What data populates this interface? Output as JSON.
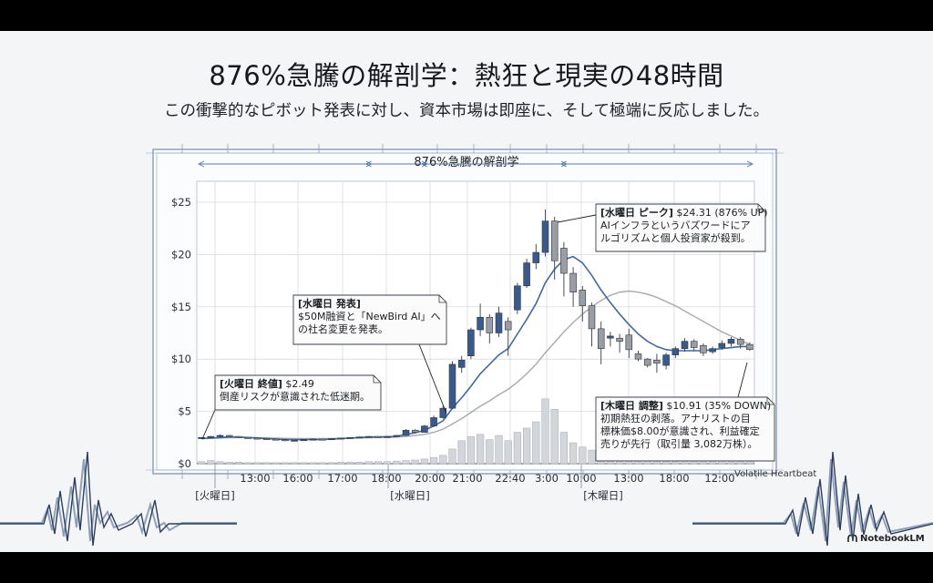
{
  "slide": {
    "title": "876%急騰の解剖学：熱狂と現実の48時間",
    "subtitle": "この衝撃的なピボット発表に対し、資本市場は即座に、そして極端に反応しました。",
    "footer_label": "Volatile Heartbeat",
    "brand": "NotebookLM"
  },
  "colors": {
    "bull": "#3b5a8c",
    "bear": "#9a9da3",
    "line_fast": "#44699b",
    "line_slow": "#a9acb1",
    "volume": "#c8cbd0",
    "grid": "#d6dae0",
    "frame": "#8fa2bd"
  },
  "chart_data": {
    "type": "candlestick",
    "title": "876%急騰の解剖学",
    "y_ticks": [
      "$25",
      "$20",
      "$15",
      "$10",
      "$5",
      "$0"
    ],
    "y_tick_values": [
      25,
      20,
      15,
      10,
      5,
      0
    ],
    "ylim": [
      0,
      27
    ],
    "x_ticks": [
      "13:00",
      "16:00",
      "17:00",
      "18:00",
      "20:00",
      "21:00",
      "22:40",
      "3:00",
      "10:00",
      "13:00",
      "18:00",
      "12:00"
    ],
    "day_labels": [
      "[火曜日]",
      "[水曜日]",
      "[木曜日]"
    ],
    "candles": [
      [
        2.4,
        2.5,
        2.35,
        2.55
      ],
      [
        2.5,
        2.6,
        2.45,
        2.65
      ],
      [
        2.6,
        2.7,
        2.55,
        2.8
      ],
      [
        2.7,
        2.65,
        2.6,
        2.75
      ],
      [
        2.6,
        2.5,
        2.45,
        2.65
      ],
      [
        2.5,
        2.45,
        2.4,
        2.55
      ],
      [
        2.45,
        2.4,
        2.35,
        2.5
      ],
      [
        2.4,
        2.35,
        2.3,
        2.45
      ],
      [
        2.35,
        2.3,
        2.25,
        2.4
      ],
      [
        2.3,
        2.2,
        2.15,
        2.35
      ],
      [
        2.2,
        2.25,
        2.15,
        2.3
      ],
      [
        2.25,
        2.3,
        2.2,
        2.35
      ],
      [
        2.3,
        2.35,
        2.25,
        2.4
      ],
      [
        2.35,
        2.3,
        2.25,
        2.4
      ],
      [
        2.3,
        2.4,
        2.25,
        2.45
      ],
      [
        2.4,
        2.45,
        2.35,
        2.5
      ],
      [
        2.45,
        2.5,
        2.4,
        2.55
      ],
      [
        2.5,
        2.55,
        2.45,
        2.6
      ],
      [
        2.55,
        2.6,
        2.5,
        2.65
      ],
      [
        2.6,
        2.55,
        2.5,
        2.65
      ],
      [
        2.55,
        2.6,
        2.5,
        2.65
      ],
      [
        2.6,
        2.7,
        2.55,
        2.75
      ],
      [
        2.7,
        3.2,
        2.65,
        3.3
      ],
      [
        3.2,
        3.0,
        2.9,
        3.3
      ],
      [
        3.0,
        3.6,
        2.95,
        3.7
      ],
      [
        3.6,
        4.4,
        3.5,
        4.6
      ],
      [
        4.4,
        5.3,
        4.3,
        5.6
      ],
      [
        5.3,
        9.5,
        5.2,
        9.8
      ],
      [
        9.2,
        9.9,
        8.7,
        10.3
      ],
      [
        10.3,
        12.8,
        10.0,
        13.0
      ],
      [
        12.8,
        14.0,
        12.2,
        15.3
      ],
      [
        14.0,
        12.5,
        11.5,
        14.3
      ],
      [
        12.5,
        14.4,
        12.1,
        15.0
      ],
      [
        13.6,
        12.8,
        10.3,
        14.0
      ],
      [
        14.7,
        17.0,
        14.3,
        17.3
      ],
      [
        17.0,
        19.2,
        16.8,
        19.6
      ],
      [
        19.2,
        20.2,
        18.6,
        21.0
      ],
      [
        20.2,
        23.2,
        19.8,
        24.31
      ],
      [
        23.2,
        19.4,
        17.6,
        23.6
      ],
      [
        20.6,
        18.2,
        16.0,
        21.2
      ],
      [
        18.2,
        16.4,
        15.0,
        18.8
      ],
      [
        16.6,
        15.1,
        13.6,
        17.0
      ],
      [
        15.1,
        12.9,
        11.2,
        15.4
      ],
      [
        12.9,
        11.0,
        9.5,
        13.6
      ],
      [
        12.0,
        12.2,
        11.2,
        12.6
      ],
      [
        12.0,
        11.7,
        10.6,
        12.4
      ],
      [
        12.3,
        10.9,
        10.1,
        12.9
      ],
      [
        10.5,
        10.0,
        9.8,
        10.8
      ],
      [
        10.0,
        9.4,
        9.2,
        10.1
      ],
      [
        9.9,
        9.6,
        8.7,
        10.5
      ],
      [
        9.4,
        10.4,
        9.0,
        10.6
      ],
      [
        10.4,
        11.0,
        10.1,
        11.2
      ],
      [
        11.0,
        11.7,
        10.7,
        12.0
      ],
      [
        11.7,
        11.1,
        10.8,
        11.9
      ],
      [
        11.3,
        10.6,
        10.3,
        11.5
      ],
      [
        10.7,
        11.0,
        10.5,
        11.2
      ],
      [
        11.1,
        11.5,
        10.9,
        11.8
      ],
      [
        11.5,
        11.9,
        11.2,
        12.1
      ],
      [
        11.9,
        11.4,
        11.0,
        12.1
      ],
      [
        11.4,
        10.91,
        10.8,
        11.6
      ]
    ],
    "volume_pct": [
      0.2,
      0.3,
      0.2,
      0.15,
      0.15,
      0.1,
      0.1,
      0.1,
      0.1,
      0.1,
      0.1,
      0.1,
      0.1,
      0.1,
      0.1,
      0.15,
      0.15,
      0.15,
      0.2,
      0.2,
      0.2,
      0.25,
      0.3,
      0.35,
      0.45,
      0.6,
      0.8,
      1.4,
      2.2,
      2.6,
      2.8,
      2.3,
      2.7,
      2.2,
      3.0,
      3.4,
      4.0,
      6.2,
      5.2,
      3.0,
      2.0,
      1.6,
      1.3,
      1.0,
      0.9,
      0.8,
      0.7,
      0.6,
      0.5,
      0.5,
      0.5,
      0.45,
      0.45,
      0.4,
      0.4,
      0.4,
      0.35,
      0.35,
      0.3,
      0.3
    ],
    "sma_fast": [
      2.4,
      2.45,
      2.5,
      2.55,
      2.55,
      2.5,
      2.45,
      2.4,
      2.35,
      2.3,
      2.3,
      2.3,
      2.3,
      2.3,
      2.35,
      2.4,
      2.45,
      2.5,
      2.55,
      2.55,
      2.58,
      2.6,
      2.8,
      2.95,
      3.2,
      3.6,
      4.1,
      5.3,
      6.3,
      7.4,
      8.6,
      9.5,
      10.4,
      11.0,
      12.4,
      13.8,
      15.3,
      17.3,
      18.6,
      19.5,
      19.8,
      19.2,
      18.0,
      16.6,
      15.4,
      14.3,
      13.3,
      12.4,
      11.7,
      11.2,
      10.9,
      10.8,
      10.8,
      10.8,
      10.8,
      10.9,
      11.0,
      11.1,
      11.2,
      11.2
    ],
    "sma_slow": [
      2.4,
      2.42,
      2.45,
      2.48,
      2.5,
      2.5,
      2.48,
      2.46,
      2.44,
      2.42,
      2.4,
      2.4,
      2.4,
      2.4,
      2.4,
      2.42,
      2.44,
      2.46,
      2.48,
      2.5,
      2.52,
      2.55,
      2.6,
      2.7,
      2.8,
      3.0,
      3.3,
      3.8,
      4.3,
      4.9,
      5.5,
      6.0,
      6.6,
      7.1,
      7.8,
      8.6,
      9.5,
      10.6,
      11.6,
      12.6,
      13.5,
      14.3,
      15.0,
      15.6,
      16.1,
      16.4,
      16.5,
      16.4,
      16.2,
      15.9,
      15.5,
      15.1,
      14.6,
      14.1,
      13.6,
      13.1,
      12.6,
      12.2,
      11.8,
      11.4
    ],
    "top_ranges": [
      [
        0,
        18
      ],
      [
        18,
        24
      ],
      [
        24,
        39
      ],
      [
        39,
        59
      ]
    ],
    "annotations": [
      {
        "bold": "[火曜日 終値]",
        "head_value": " $2.49",
        "body": [
          "倒産リスクが意識された低迷期。"
        ]
      },
      {
        "bold": "[水曜日 発表]",
        "head_value": "",
        "body": [
          "$50M融資と「NewBird AI」へ",
          "の社名変更を発表。"
        ]
      },
      {
        "bold": "[水曜日 ピーク]",
        "head_value": " $24.31 (876% UP)",
        "body": [
          "AIインフラというバズワードにア",
          "ルゴリズムと個人投資家が殺到。"
        ]
      },
      {
        "bold": "[木曜日 調整]",
        "head_value": " $10.91 (35% DOWN)",
        "body": [
          "初期熱狂の剥落。アナリストの目",
          "標株価$8.00が意識され、利益確定",
          "売りが先行（取引量 3,082万株）。"
        ]
      }
    ]
  }
}
